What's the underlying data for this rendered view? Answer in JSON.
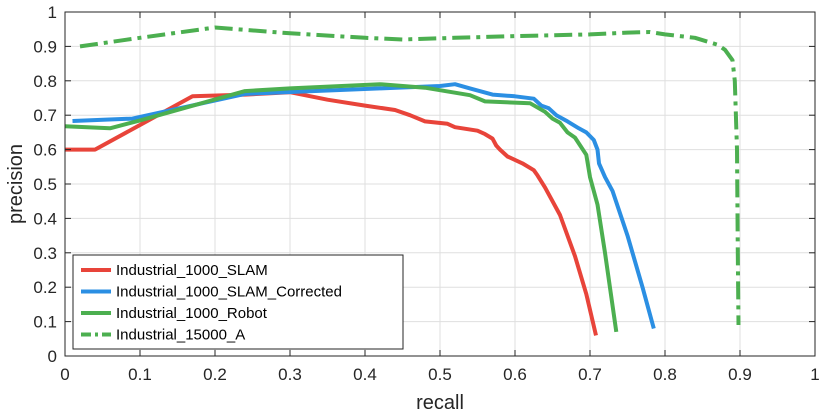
{
  "chart_data": {
    "type": "line",
    "xlabel": "recall",
    "ylabel": "precision",
    "xlim": [
      0,
      1
    ],
    "ylim": [
      0,
      1
    ],
    "xticks": [
      0,
      0.1,
      0.2,
      0.3,
      0.4,
      0.5,
      0.6,
      0.7,
      0.8,
      0.9,
      1
    ],
    "yticks": [
      0,
      0.1,
      0.2,
      0.3,
      0.4,
      0.5,
      0.6,
      0.7,
      0.8,
      0.9,
      1
    ],
    "xtick_labels": [
      "0",
      "0.1",
      "0.2",
      "0.3",
      "0.4",
      "0.5",
      "0.6",
      "0.7",
      "0.8",
      "0.9",
      "1"
    ],
    "ytick_labels": [
      "0",
      "0.1",
      "0.2",
      "0.3",
      "0.4",
      "0.5",
      "0.6",
      "0.7",
      "0.8",
      "0.9",
      "1"
    ],
    "grid": true,
    "legend_position": "bottom-left",
    "series": [
      {
        "name": "Industrial_1000_SLAM",
        "color": "#e8443a",
        "dash": "solid",
        "points": [
          [
            0.0,
            0.6
          ],
          [
            0.04,
            0.6
          ],
          [
            0.17,
            0.755
          ],
          [
            0.24,
            0.76
          ],
          [
            0.3,
            0.767
          ],
          [
            0.35,
            0.745
          ],
          [
            0.4,
            0.728
          ],
          [
            0.44,
            0.715
          ],
          [
            0.46,
            0.7
          ],
          [
            0.48,
            0.682
          ],
          [
            0.51,
            0.675
          ],
          [
            0.52,
            0.665
          ],
          [
            0.55,
            0.655
          ],
          [
            0.56,
            0.645
          ],
          [
            0.57,
            0.632
          ],
          [
            0.575,
            0.612
          ],
          [
            0.58,
            0.6
          ],
          [
            0.59,
            0.58
          ],
          [
            0.6,
            0.57
          ],
          [
            0.61,
            0.56
          ],
          [
            0.625,
            0.54
          ],
          [
            0.63,
            0.525
          ],
          [
            0.64,
            0.49
          ],
          [
            0.65,
            0.45
          ],
          [
            0.66,
            0.41
          ],
          [
            0.68,
            0.29
          ],
          [
            0.695,
            0.18
          ],
          [
            0.708,
            0.06
          ]
        ]
      },
      {
        "name": "Industrial_1000_SLAM_Corrected",
        "color": "#2b8fe3",
        "dash": "solid",
        "points": [
          [
            0.01,
            0.683
          ],
          [
            0.09,
            0.69
          ],
          [
            0.24,
            0.762
          ],
          [
            0.42,
            0.778
          ],
          [
            0.5,
            0.785
          ],
          [
            0.52,
            0.79
          ],
          [
            0.54,
            0.778
          ],
          [
            0.57,
            0.76
          ],
          [
            0.6,
            0.755
          ],
          [
            0.625,
            0.748
          ],
          [
            0.635,
            0.728
          ],
          [
            0.645,
            0.72
          ],
          [
            0.655,
            0.7
          ],
          [
            0.67,
            0.682
          ],
          [
            0.685,
            0.662
          ],
          [
            0.695,
            0.65
          ],
          [
            0.705,
            0.628
          ],
          [
            0.71,
            0.6
          ],
          [
            0.712,
            0.56
          ],
          [
            0.72,
            0.52
          ],
          [
            0.73,
            0.48
          ],
          [
            0.75,
            0.35
          ],
          [
            0.77,
            0.2
          ],
          [
            0.785,
            0.08
          ]
        ]
      },
      {
        "name": "Industrial_1000_Robot",
        "color": "#4caf50",
        "dash": "solid",
        "points": [
          [
            0.0,
            0.668
          ],
          [
            0.06,
            0.662
          ],
          [
            0.1,
            0.685
          ],
          [
            0.24,
            0.77
          ],
          [
            0.3,
            0.778
          ],
          [
            0.42,
            0.79
          ],
          [
            0.48,
            0.78
          ],
          [
            0.54,
            0.758
          ],
          [
            0.56,
            0.74
          ],
          [
            0.62,
            0.735
          ],
          [
            0.64,
            0.71
          ],
          [
            0.65,
            0.69
          ],
          [
            0.66,
            0.678
          ],
          [
            0.67,
            0.65
          ],
          [
            0.68,
            0.635
          ],
          [
            0.695,
            0.585
          ],
          [
            0.7,
            0.52
          ],
          [
            0.71,
            0.44
          ],
          [
            0.72,
            0.3
          ],
          [
            0.735,
            0.07
          ]
        ]
      },
      {
        "name": "Industrial_15000_A",
        "color": "#4caf50",
        "dash": "dashdot",
        "points": [
          [
            0.02,
            0.9
          ],
          [
            0.1,
            0.925
          ],
          [
            0.2,
            0.955
          ],
          [
            0.3,
            0.938
          ],
          [
            0.4,
            0.925
          ],
          [
            0.45,
            0.92
          ],
          [
            0.52,
            0.925
          ],
          [
            0.6,
            0.93
          ],
          [
            0.7,
            0.935
          ],
          [
            0.75,
            0.94
          ],
          [
            0.78,
            0.942
          ],
          [
            0.8,
            0.935
          ],
          [
            0.84,
            0.925
          ],
          [
            0.87,
            0.905
          ],
          [
            0.88,
            0.89
          ],
          [
            0.89,
            0.86
          ],
          [
            0.893,
            0.8
          ],
          [
            0.896,
            0.6
          ],
          [
            0.897,
            0.3
          ],
          [
            0.898,
            0.09
          ]
        ]
      }
    ]
  }
}
